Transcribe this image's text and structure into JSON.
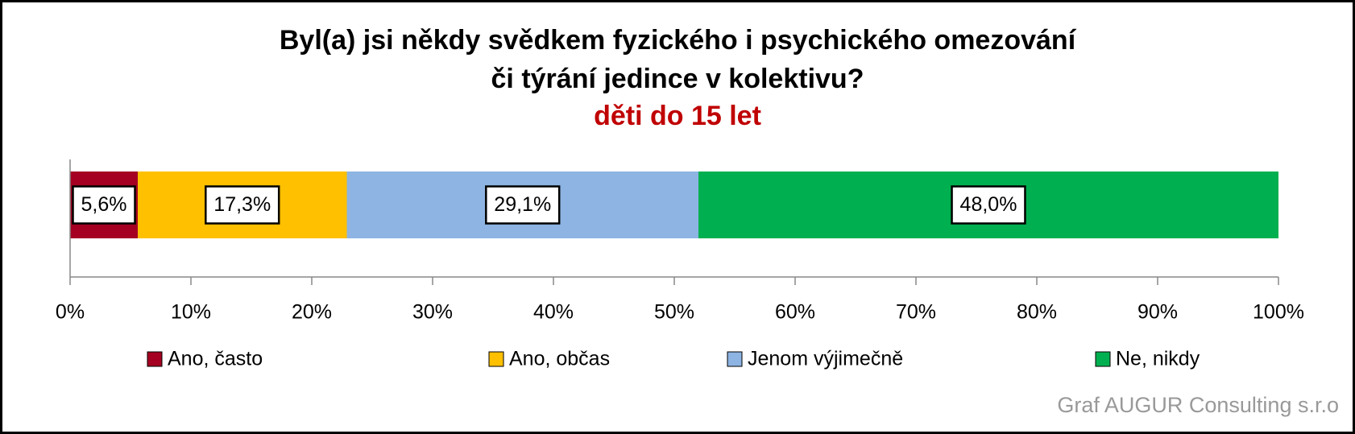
{
  "chart_data": {
    "type": "stacked-bar-horizontal",
    "title": [
      "Byl(a) jsi někdy svědkem fyzického i psychického omezování",
      "či týrání jedince v kolektivu?"
    ],
    "subtitle": "děti do 15 let",
    "series": [
      {
        "name": "Ano, často",
        "color": "#a50021",
        "values": [
          5.6
        ],
        "value_labels": [
          "5,6%"
        ]
      },
      {
        "name": "Ano, občas",
        "color": "#ffc000",
        "values": [
          17.3
        ],
        "value_labels": [
          "17,3%"
        ]
      },
      {
        "name": "Jenom výjimečně",
        "color": "#8db4e2",
        "values": [
          29.1
        ],
        "value_labels": [
          "29,1%"
        ]
      },
      {
        "name": "Ne, nikdy",
        "color": "#00b050",
        "values": [
          48.0
        ],
        "value_labels": [
          "48,0%"
        ]
      }
    ],
    "xlim": [
      0,
      100
    ],
    "xticks": [
      {
        "value": 0,
        "label": "0%"
      },
      {
        "value": 10,
        "label": "10%"
      },
      {
        "value": 20,
        "label": "20%"
      },
      {
        "value": 30,
        "label": "30%"
      },
      {
        "value": 40,
        "label": "40%"
      },
      {
        "value": 50,
        "label": "50%"
      },
      {
        "value": 60,
        "label": "60%"
      },
      {
        "value": 70,
        "label": "70%"
      },
      {
        "value": 80,
        "label": "80%"
      },
      {
        "value": 90,
        "label": "90%"
      },
      {
        "value": 100,
        "label": "100%"
      }
    ],
    "footnote": "Graf AUGUR Consulting s.r.o"
  }
}
